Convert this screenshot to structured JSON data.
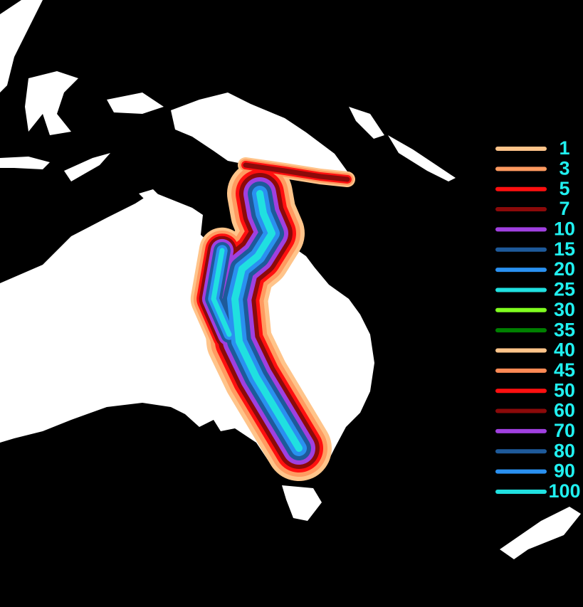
{
  "legend": {
    "items": [
      {
        "value": 1,
        "color": "#ffc48a"
      },
      {
        "value": 3,
        "color": "#ff9a60"
      },
      {
        "value": 5,
        "color": "#ff1010"
      },
      {
        "value": 7,
        "color": "#8b0a0a"
      },
      {
        "value": 10,
        "color": "#a040e0"
      },
      {
        "value": 15,
        "color": "#1e5a9a"
      },
      {
        "value": 20,
        "color": "#2a90f0"
      },
      {
        "value": 25,
        "color": "#20e0e0"
      },
      {
        "value": 30,
        "color": "#80ff20"
      },
      {
        "value": 35,
        "color": "#008000"
      },
      {
        "value": 40,
        "color": "#ffc48a"
      },
      {
        "value": 45,
        "color": "#ff8a55"
      },
      {
        "value": 50,
        "color": "#ff1010"
      },
      {
        "value": 60,
        "color": "#8b0a0a"
      },
      {
        "value": 70,
        "color": "#a040e0"
      },
      {
        "value": 80,
        "color": "#1e5a9a"
      },
      {
        "value": 90,
        "color": "#2a90f0"
      },
      {
        "value": 100,
        "color": "#20e0e0"
      }
    ]
  }
}
